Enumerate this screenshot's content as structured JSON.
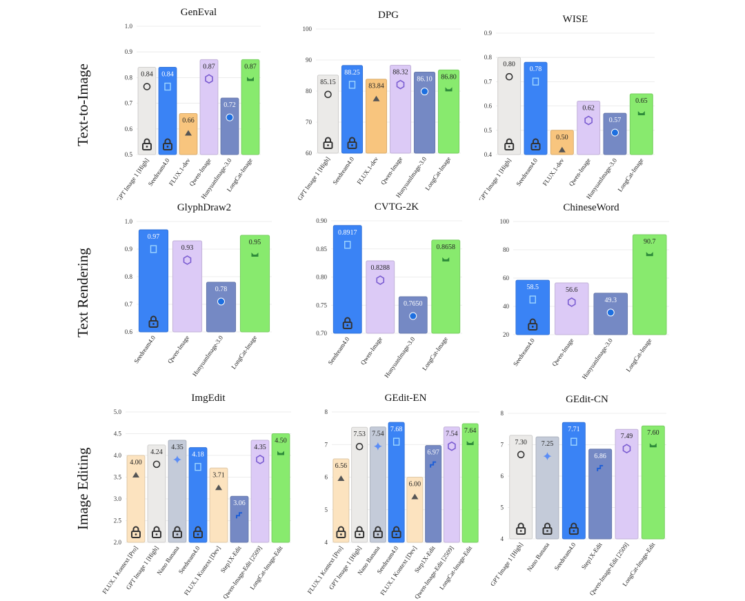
{
  "row_labels": [
    "Text-to-Image",
    "Text Rendering",
    "Image Editing"
  ],
  "colors": {
    "GPT Image 1 [High]": "#ebeae8",
    "Seedream4.0": "#3a83f5",
    "FLUX.1-dev": "#f8c57e",
    "Qwen-Image": "#dccaf6",
    "HunyuanImage-3.0": "#7589c4",
    "LongCat-Image": "#88ea6e",
    "FLUX.1 Kontext [Pro]": "#fce3bf",
    "Nano Banana": "#c4cbd9",
    "FLUX.1 Kontext [Dev]": "#fce3bf",
    "Step1X-Edit": "#7589c4",
    "Qwen-Image-Edit [2509]": "#dccaf6",
    "LongCat-Image-Edit": "#88ea6e"
  },
  "lock_models": [
    "GPT Image 1 [High]",
    "Seedream4.0",
    "FLUX.1 Kontext [Pro]",
    "Nano Banana"
  ],
  "chart_data": [
    {
      "type": "bar",
      "title": "GenEval",
      "categories": [
        "GPT Image 1 [High]",
        "Seedream4.0",
        "FLUX.1-dev",
        "Qwen-Image",
        "HunyuanImage-3.0",
        "LongCat-Image"
      ],
      "values": [
        0.84,
        0.84,
        0.66,
        0.87,
        0.72,
        0.87
      ],
      "labels": [
        "0.84",
        "0.84",
        "0.66",
        "0.87",
        "0.72",
        "0.87"
      ],
      "ylim": [
        0.5,
        1.0
      ],
      "yticks": [
        "0.5",
        "0.6",
        "0.7",
        "0.8",
        "0.9",
        "1.0"
      ],
      "grid": true
    },
    {
      "type": "bar",
      "title": "DPG",
      "categories": [
        "GPT Image 1 [High]",
        "Seedream4.0",
        "FLUX.1-dev",
        "Qwen-Image",
        "HunyuanImage-3.0",
        "LongCat-Image"
      ],
      "values": [
        85.15,
        88.25,
        83.84,
        88.32,
        86.1,
        86.8
      ],
      "labels": [
        "85.15",
        "88.25",
        "83.84",
        "88.32",
        "86.10",
        "86.80"
      ],
      "ylim": [
        60,
        100
      ],
      "yticks": [
        "60",
        "70",
        "80",
        "90",
        "100"
      ],
      "grid": true
    },
    {
      "type": "bar",
      "title": "WISE",
      "categories": [
        "GPT Image 1 [High]",
        "Seedream4.0",
        "FLUX.1-dev",
        "Qwen-Image",
        "HunyuanImage-3.0",
        "LongCat-Image"
      ],
      "values": [
        0.8,
        0.78,
        0.5,
        0.62,
        0.57,
        0.65
      ],
      "labels": [
        "0.80",
        "0.78",
        "0.50",
        "0.62",
        "0.57",
        "0.65"
      ],
      "ylim": [
        0.4,
        0.9
      ],
      "yticks": [
        "0.4",
        "0.5",
        "0.6",
        "0.7",
        "0.8",
        "0.9"
      ],
      "grid": true
    },
    {
      "type": "bar",
      "title": "GlyphDraw2",
      "categories": [
        "Seedream4.0",
        "Qwen-Image",
        "HunyuanImage-3.0",
        "LongCat-Image"
      ],
      "values": [
        0.97,
        0.93,
        0.78,
        0.95
      ],
      "labels": [
        "0.97",
        "0.93",
        "0.78",
        "0.95"
      ],
      "ylim": [
        0.6,
        1.0
      ],
      "yticks": [
        "0.6",
        "0.7",
        "0.8",
        "0.9",
        "1.0"
      ],
      "grid": true
    },
    {
      "type": "bar",
      "title": "CVTG-2K",
      "categories": [
        "Seedream4.0",
        "Qwen-Image",
        "HunyuanImage-3.0",
        "LongCat-Image"
      ],
      "values": [
        0.8917,
        0.8288,
        0.765,
        0.8658
      ],
      "labels": [
        "0.8917",
        "0.8288",
        "0.7650",
        "0.8658"
      ],
      "ylim": [
        0.7,
        0.9
      ],
      "yticks": [
        "0.70",
        "0.75",
        "0.80",
        "0.85",
        "0.90"
      ],
      "grid": true
    },
    {
      "type": "bar",
      "title": "ChineseWord",
      "categories": [
        "Seedream4.0",
        "Qwen-Image",
        "HunyuanImage-3.0",
        "LongCat-Image"
      ],
      "values": [
        58.5,
        56.6,
        49.3,
        90.7
      ],
      "labels": [
        "58.5",
        "56.6",
        "49.3",
        "90.7"
      ],
      "ylim": [
        20,
        100
      ],
      "yticks": [
        "20",
        "40",
        "60",
        "80",
        "100"
      ],
      "grid": true
    },
    {
      "type": "bar",
      "title": "ImgEdit",
      "categories": [
        "FLUX.1 Kontext [Pro]",
        "GPT Image 1 [High]",
        "Nano Banana",
        "Seedream4.0",
        "FLUX.1 Kontext [Dev]",
        "Step1X-Edit",
        "Qwen-Image-Edit [2509]",
        "LongCat-Image-Edit"
      ],
      "values": [
        4.0,
        4.24,
        4.35,
        4.18,
        3.71,
        3.06,
        4.35,
        4.5
      ],
      "labels": [
        "4.00",
        "4.24",
        "4.35",
        "4.18",
        "3.71",
        "3.06",
        "4.35",
        "4.50"
      ],
      "ylim": [
        2.0,
        5.0
      ],
      "yticks": [
        "2.0",
        "2.5",
        "3.0",
        "3.5",
        "4.0",
        "4.5",
        "5.0"
      ],
      "grid": true
    },
    {
      "type": "bar",
      "title": "GEdit-EN",
      "categories": [
        "FLUX.1 Kontext [Pro]",
        "GPT Image 1 [High]",
        "Nano Banana",
        "Seedream4.0",
        "FLUX.1 Kontext [Dev]",
        "Step1X-Edit",
        "Qwen-Image-Edit [2509]",
        "LongCat-Image-Edit"
      ],
      "values": [
        6.56,
        7.53,
        7.54,
        7.68,
        6.0,
        6.97,
        7.54,
        7.64
      ],
      "labels": [
        "6.56",
        "7.53",
        "7.54",
        "7.68",
        "6.00",
        "6.97",
        "7.54",
        "7.64"
      ],
      "ylim": [
        4,
        8
      ],
      "yticks": [
        "4",
        "5",
        "6",
        "7",
        "8"
      ],
      "grid": true
    },
    {
      "type": "bar",
      "title": "GEdit-CN",
      "categories": [
        "GPT Image 1 [High]",
        "Nano Banana",
        "Seedream4.0",
        "Step1X-Edit",
        "Qwen-Image-Edit [2509]",
        "LongCat-Image-Edit"
      ],
      "values": [
        7.3,
        7.25,
        7.71,
        6.86,
        7.49,
        7.6
      ],
      "labels": [
        "7.30",
        "7.25",
        "7.71",
        "6.86",
        "7.49",
        "7.60"
      ],
      "ylim": [
        4,
        8
      ],
      "yticks": [
        "4",
        "5",
        "6",
        "7",
        "8"
      ],
      "grid": true
    }
  ]
}
